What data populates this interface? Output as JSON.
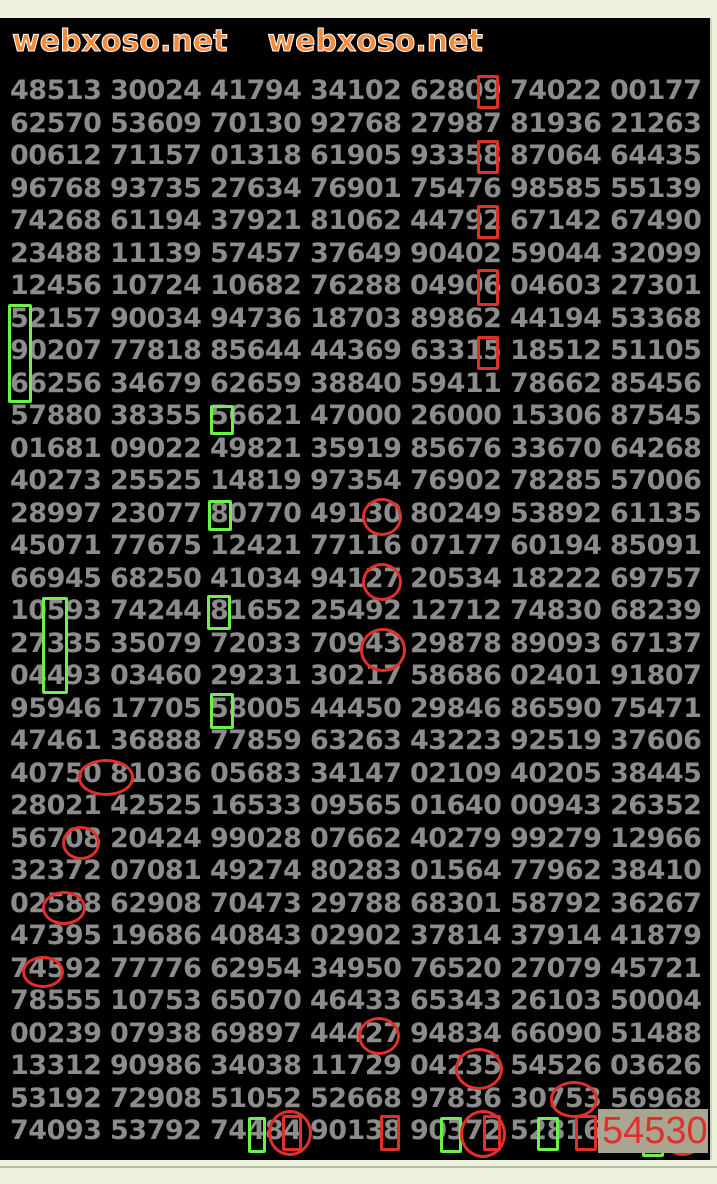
{
  "watermark": "webxoso.net",
  "highlight_value": "54530",
  "colors": {
    "background": "#000000",
    "digits": "#8c8c8c",
    "red_marks": "#e0302a",
    "green_marks": "#6ef04a",
    "watermark": "#f58a3a"
  },
  "rows": [
    [
      "48513",
      "30024",
      "41794",
      "34102",
      "62809",
      "74022",
      "00177"
    ],
    [
      "62570",
      "53609",
      "70130",
      "92768",
      "27987",
      "81936",
      "21263"
    ],
    [
      "00612",
      "71157",
      "01318",
      "61905",
      "93358",
      "87064",
      "64435"
    ],
    [
      "96768",
      "93735",
      "27634",
      "76901",
      "75476",
      "98585",
      "55139"
    ],
    [
      "74268",
      "61194",
      "37921",
      "81062",
      "44792",
      "67142",
      "67490"
    ],
    [
      "23488",
      "11139",
      "57457",
      "37649",
      "90402",
      "59044",
      "32099"
    ],
    [
      "12456",
      "10724",
      "10682",
      "76288",
      "04906",
      "04603",
      "27301"
    ],
    [
      "52157",
      "90034",
      "94736",
      "18703",
      "89862",
      "44194",
      "53368"
    ],
    [
      "90207",
      "77818",
      "85644",
      "44369",
      "63315",
      "18512",
      "51105"
    ],
    [
      "66256",
      "34679",
      "62659",
      "38840",
      "59411",
      "78662",
      "85456"
    ],
    [
      "57880",
      "38355",
      "56621",
      "47000",
      "26000",
      "15306",
      "87545"
    ],
    [
      "01681",
      "09022",
      "49821",
      "35919",
      "85676",
      "33670",
      "64268"
    ],
    [
      "40273",
      "25525",
      "14819",
      "97354",
      "76902",
      "78285",
      "57006"
    ],
    [
      "28997",
      "23077",
      "80770",
      "49130",
      "80249",
      "53892",
      "61135"
    ],
    [
      "45071",
      "77675",
      "12421",
      "77116",
      "07177",
      "60194",
      "85091"
    ],
    [
      "66945",
      "68250",
      "41034",
      "94127",
      "20534",
      "18222",
      "69757"
    ],
    [
      "10593",
      "74244",
      "81652",
      "25492",
      "12712",
      "74830",
      "68239"
    ],
    [
      "27335",
      "35079",
      "72033",
      "70943",
      "29878",
      "89093",
      "67137"
    ],
    [
      "04493",
      "03460",
      "29231",
      "30217",
      "58686",
      "02401",
      "91807"
    ],
    [
      "95946",
      "17705",
      "58005",
      "44450",
      "29846",
      "86590",
      "75471"
    ],
    [
      "47461",
      "36888",
      "77859",
      "63263",
      "43223",
      "92519",
      "37606"
    ],
    [
      "40750",
      "81036",
      "05683",
      "34147",
      "02109",
      "40205",
      "38445"
    ],
    [
      "28021",
      "42525",
      "16533",
      "09565",
      "01640",
      "00943",
      "26352"
    ],
    [
      "56708",
      "20424",
      "99028",
      "07662",
      "40279",
      "99279",
      "12966"
    ],
    [
      "32372",
      "07081",
      "49274",
      "80283",
      "01564",
      "77962",
      "38410"
    ],
    [
      "02588",
      "62908",
      "70473",
      "29788",
      "68301",
      "58792",
      "36267"
    ],
    [
      "47395",
      "19686",
      "40843",
      "02902",
      "37814",
      "37914",
      "41879"
    ],
    [
      "74592",
      "77776",
      "62954",
      "34950",
      "76520",
      "27079",
      "45721"
    ],
    [
      "78555",
      "10753",
      "65070",
      "46433",
      "65343",
      "26103",
      "50004"
    ],
    [
      "00239",
      "07938",
      "69897",
      "44427",
      "94834",
      "66090",
      "51488"
    ],
    [
      "13312",
      "90986",
      "34038",
      "11729",
      "04235",
      "54526",
      "03626"
    ],
    [
      "53192",
      "72908",
      "51052",
      "52668",
      "97836",
      "30753",
      "56968"
    ],
    [
      "74093",
      "53792",
      "74484",
      "90138",
      "90372",
      "52816",
      ""
    ]
  ]
}
